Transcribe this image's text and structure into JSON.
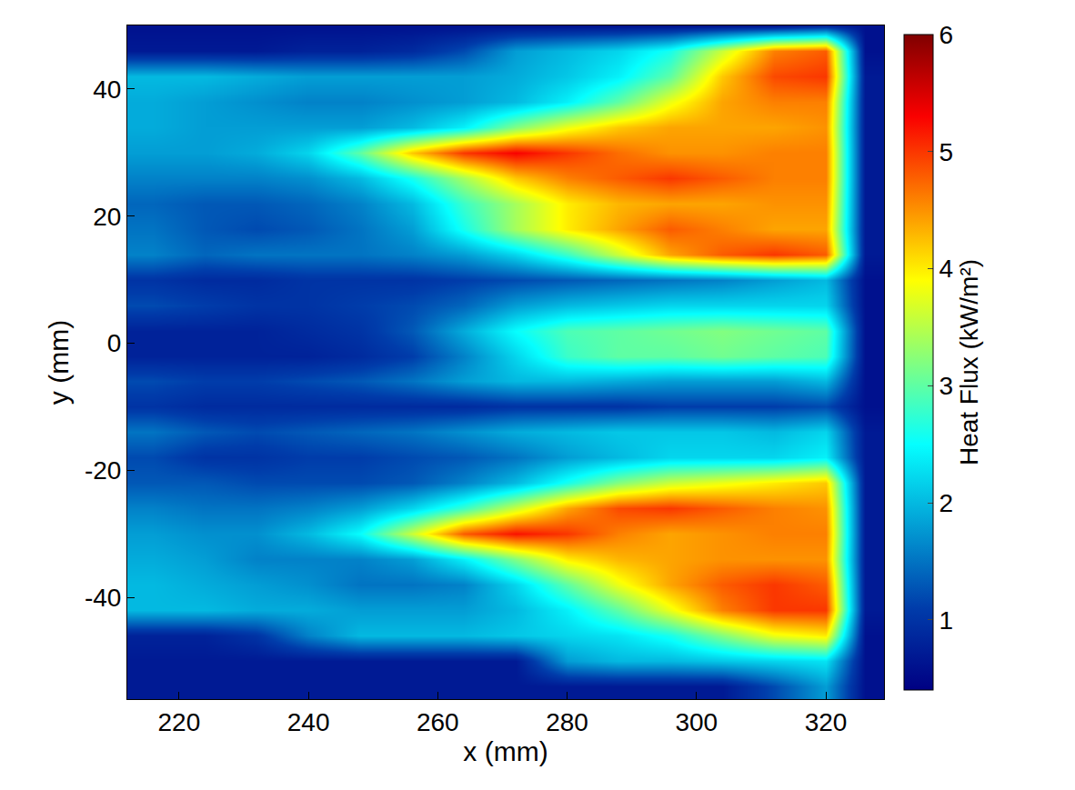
{
  "chart_data": {
    "type": "heatmap",
    "x_label": "x (mm)",
    "y_label": "y (mm)",
    "colorbar_label": "Heat Flux (kW/m²)",
    "color": "Jet",
    "xlim": [
      212,
      329
    ],
    "xticks": [
      220,
      240,
      260,
      280,
      300,
      320
    ],
    "ylim": [
      -56,
      50
    ],
    "yticks": [
      -40,
      -20,
      0,
      20,
      40
    ],
    "zlim": [
      0.4,
      6
    ],
    "zticks": [
      1,
      2,
      3,
      4,
      5,
      6
    ],
    "x": [
      216,
      224,
      232,
      240,
      248,
      256,
      264,
      272,
      280,
      288,
      296,
      304,
      312,
      320,
      326
    ],
    "y": [
      -54,
      -50,
      -46,
      -42,
      -38,
      -34,
      -30,
      -26,
      -22,
      -18,
      -14,
      -10,
      -6,
      -2,
      2,
      6,
      10,
      14,
      18,
      22,
      26,
      30,
      34,
      38,
      42,
      46,
      50
    ],
    "z": [
      [
        0.7,
        0.7,
        0.7,
        0.7,
        0.7,
        0.7,
        0.7,
        0.7,
        0.7,
        0.7,
        0.7,
        0.7,
        1.2,
        1.8,
        0.6
      ],
      [
        0.7,
        0.7,
        0.7,
        0.7,
        0.7,
        0.7,
        0.7,
        0.7,
        1.8,
        2.0,
        2.0,
        2.1,
        2.2,
        2.3,
        0.6
      ],
      [
        0.8,
        0.8,
        1.0,
        1.6,
        2.0,
        2.0,
        2.0,
        2.1,
        2.2,
        2.3,
        2.6,
        3.2,
        3.8,
        4.0,
        0.6
      ],
      [
        2.0,
        2.0,
        1.9,
        1.9,
        1.8,
        1.8,
        1.8,
        2.0,
        2.4,
        3.0,
        3.8,
        4.6,
        5.0,
        5.0,
        0.7
      ],
      [
        2.0,
        1.9,
        1.8,
        1.7,
        1.5,
        1.5,
        1.6,
        2.2,
        3.0,
        3.8,
        4.4,
        4.8,
        5.0,
        4.8,
        0.7
      ],
      [
        1.9,
        1.8,
        1.6,
        1.6,
        1.6,
        1.8,
        2.4,
        3.2,
        4.0,
        4.3,
        4.4,
        4.5,
        4.5,
        4.5,
        0.7
      ],
      [
        1.8,
        1.7,
        1.7,
        2.0,
        2.5,
        3.6,
        4.8,
        5.2,
        5.0,
        4.6,
        4.4,
        4.5,
        4.6,
        4.6,
        0.7
      ],
      [
        1.6,
        1.5,
        1.5,
        1.6,
        1.8,
        2.2,
        2.8,
        3.6,
        4.4,
        4.9,
        5.0,
        4.8,
        4.6,
        4.5,
        0.7
      ],
      [
        1.3,
        1.3,
        1.2,
        1.2,
        1.2,
        1.3,
        1.6,
        2.0,
        2.6,
        3.2,
        3.6,
        3.8,
        4.0,
        4.2,
        0.7
      ],
      [
        1.2,
        1.0,
        1.0,
        1.1,
        1.1,
        1.2,
        1.3,
        1.5,
        1.8,
        2.0,
        2.2,
        2.2,
        2.2,
        2.4,
        0.7
      ],
      [
        1.5,
        1.3,
        1.2,
        1.3,
        1.4,
        1.5,
        1.7,
        1.9,
        2.0,
        2.1,
        2.1,
        2.1,
        2.0,
        2.2,
        0.7
      ],
      [
        1.0,
        0.9,
        0.9,
        0.9,
        0.9,
        0.9,
        0.9,
        1.0,
        1.0,
        1.0,
        1.1,
        1.1,
        1.1,
        1.2,
        0.6
      ],
      [
        1.2,
        1.1,
        1.1,
        1.2,
        1.3,
        1.5,
        1.8,
        2.0,
        2.0,
        1.9,
        1.8,
        1.8,
        1.8,
        2.0,
        0.6
      ],
      [
        0.8,
        0.8,
        0.8,
        0.8,
        0.9,
        1.1,
        1.6,
        2.2,
        2.8,
        3.0,
        3.0,
        3.1,
        3.0,
        2.9,
        0.6
      ],
      [
        0.8,
        0.8,
        0.8,
        0.9,
        1.0,
        1.3,
        1.9,
        2.5,
        2.9,
        3.0,
        3.1,
        3.2,
        3.1,
        3.0,
        0.6
      ],
      [
        1.2,
        1.1,
        1.0,
        1.0,
        1.1,
        1.2,
        1.4,
        1.8,
        2.0,
        2.1,
        2.2,
        2.2,
        2.2,
        2.2,
        0.6
      ],
      [
        1.0,
        0.9,
        0.9,
        1.0,
        1.0,
        1.0,
        1.1,
        1.2,
        1.3,
        1.4,
        1.5,
        1.6,
        1.8,
        2.0,
        0.6
      ],
      [
        1.6,
        1.4,
        1.5,
        1.5,
        1.5,
        1.6,
        1.8,
        2.2,
        2.8,
        3.6,
        4.4,
        4.8,
        5.0,
        4.8,
        0.7
      ],
      [
        1.5,
        1.3,
        1.2,
        1.3,
        1.5,
        1.8,
        2.6,
        3.4,
        4.0,
        4.4,
        4.8,
        4.6,
        4.4,
        4.4,
        0.7
      ],
      [
        1.4,
        1.3,
        1.3,
        1.4,
        1.6,
        2.0,
        2.8,
        3.4,
        4.0,
        4.3,
        4.4,
        4.4,
        4.5,
        4.5,
        0.7
      ],
      [
        1.6,
        1.6,
        1.6,
        1.7,
        2.0,
        2.6,
        3.4,
        4.2,
        4.6,
        4.8,
        5.0,
        4.8,
        4.6,
        4.6,
        0.7
      ],
      [
        1.8,
        1.8,
        1.9,
        2.2,
        3.0,
        4.2,
        5.0,
        5.3,
        5.0,
        4.7,
        4.5,
        4.5,
        4.6,
        4.6,
        0.7
      ],
      [
        1.9,
        1.8,
        1.8,
        1.8,
        1.8,
        2.0,
        2.4,
        3.2,
        3.8,
        4.2,
        4.4,
        4.4,
        4.4,
        4.5,
        0.7
      ],
      [
        1.9,
        1.8,
        1.7,
        1.6,
        1.6,
        1.7,
        1.8,
        2.0,
        2.4,
        3.0,
        3.8,
        4.4,
        4.6,
        4.6,
        0.7
      ],
      [
        2.0,
        2.0,
        1.9,
        1.8,
        1.8,
        1.8,
        1.8,
        1.9,
        2.1,
        2.4,
        3.0,
        4.2,
        4.9,
        5.0,
        0.7
      ],
      [
        0.7,
        0.7,
        0.7,
        0.8,
        0.8,
        0.9,
        1.2,
        1.8,
        2.0,
        2.2,
        2.6,
        3.6,
        4.6,
        4.8,
        0.6
      ],
      [
        0.6,
        0.6,
        0.6,
        0.6,
        0.6,
        0.6,
        0.6,
        0.6,
        0.6,
        0.6,
        0.6,
        0.6,
        0.6,
        0.8,
        0.6
      ]
    ]
  }
}
